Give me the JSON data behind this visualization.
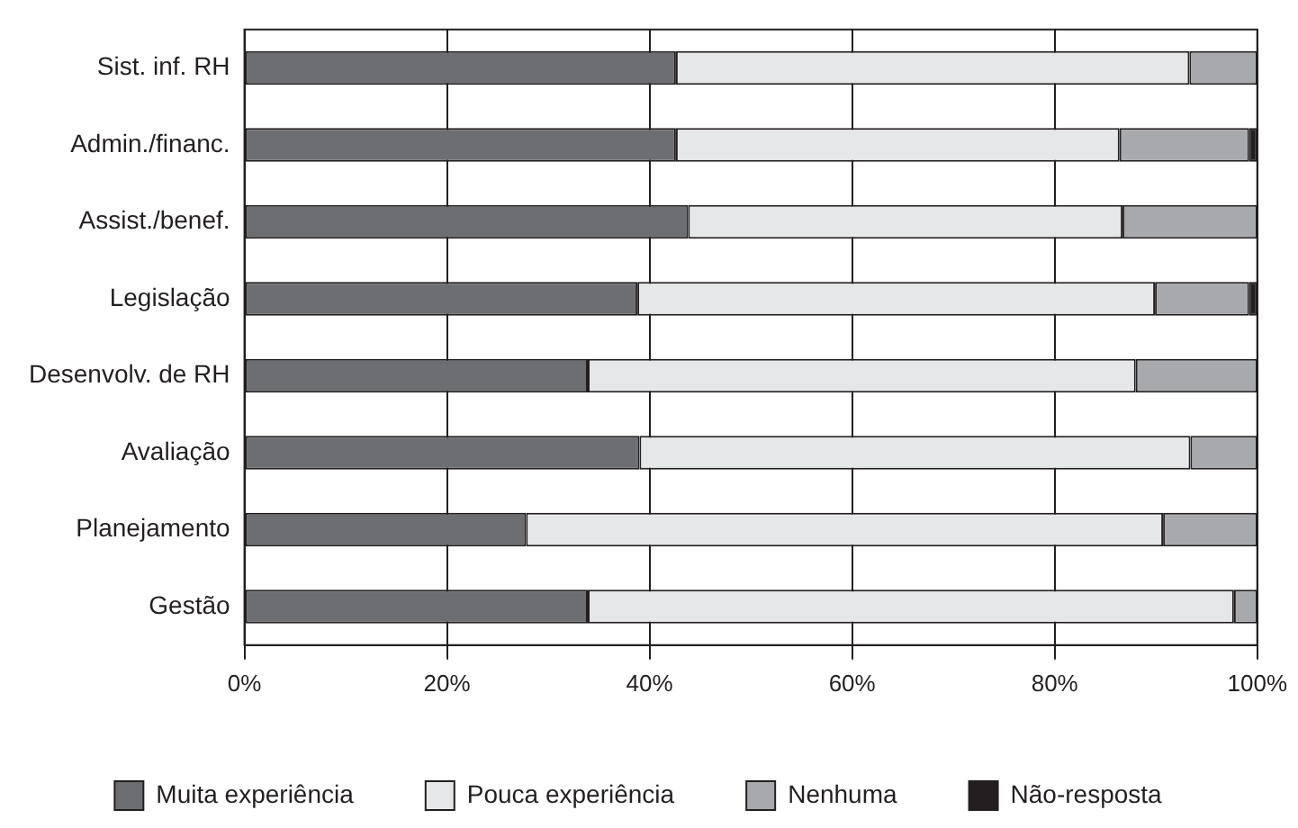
{
  "chart_data": {
    "type": "bar",
    "orientation": "horizontal",
    "stacked": true,
    "categories": [
      "Sist. inf. RH",
      "Admin./financ.",
      "Assist./benef.",
      "Legislação",
      "Desenvolv. de RH",
      "Avaliação",
      "Planejamento",
      "Gestão"
    ],
    "series": [
      {
        "name": "Muita experiência",
        "color": "#6d6e71",
        "values": [
          42.6,
          42.6,
          43.8,
          38.8,
          33.9,
          39.0,
          27.8,
          33.9
        ]
      },
      {
        "name": "Pouca experiência",
        "color": "#e6e7e8",
        "values": [
          50.7,
          43.8,
          42.9,
          51.1,
          54.1,
          54.4,
          62.9,
          63.8
        ]
      },
      {
        "name": "Nenhuma",
        "color": "#a7a9ac",
        "values": [
          6.7,
          12.8,
          13.3,
          9.3,
          12.0,
          6.6,
          9.3,
          2.3
        ]
      },
      {
        "name": "Não-resposta",
        "color": "#231f20",
        "values": [
          null,
          0.8,
          null,
          0.8,
          null,
          null,
          null,
          null
        ]
      }
    ],
    "xlim": [
      0,
      100
    ],
    "xticks": [
      {
        "value": 0,
        "label": "0%"
      },
      {
        "value": 20,
        "label": "20%"
      },
      {
        "value": 40,
        "label": "40%"
      },
      {
        "value": 60,
        "label": "60%"
      },
      {
        "value": 80,
        "label": "80%"
      },
      {
        "value": 100,
        "label": "100%"
      }
    ],
    "grid": "x",
    "legend": "bottom"
  }
}
